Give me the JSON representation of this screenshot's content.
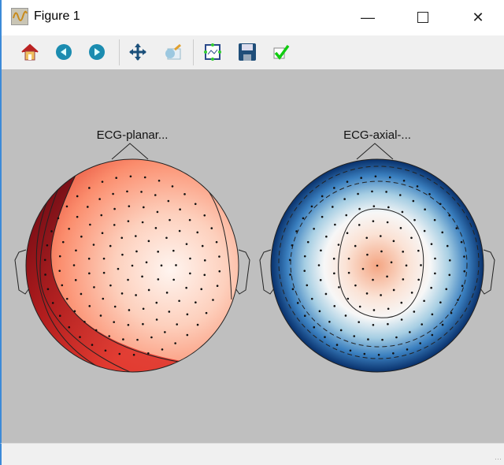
{
  "window": {
    "title": "Figure 1",
    "icon": "matplotlib-figure-icon"
  },
  "window_controls": [
    "minimize-icon",
    "maximize-icon",
    "close-icon"
  ],
  "toolbar": {
    "buttons": [
      {
        "name": "home",
        "icon": "home-icon"
      },
      {
        "name": "back",
        "icon": "arrow-left-icon"
      },
      {
        "name": "forward",
        "icon": "arrow-right-icon"
      },
      {
        "name": "pan",
        "icon": "move-arrows-icon"
      },
      {
        "name": "zoom",
        "icon": "zoom-rect-icon"
      },
      {
        "name": "subplots",
        "icon": "configure-subplots-icon"
      },
      {
        "name": "save",
        "icon": "floppy-disk-icon"
      },
      {
        "name": "customize",
        "icon": "checkmark-icon"
      }
    ]
  },
  "figure": {
    "topomaps": [
      {
        "title": "ECG-planar...",
        "colormap": "Reds",
        "colors": [
          "#fff5f0",
          "#fb6a4a",
          "#67000d"
        ]
      },
      {
        "title": "ECG-axial-...",
        "colormap": "RdBu_r",
        "colors": [
          "#08306b",
          "#f7f7f7",
          "#f4a582"
        ]
      }
    ]
  }
}
